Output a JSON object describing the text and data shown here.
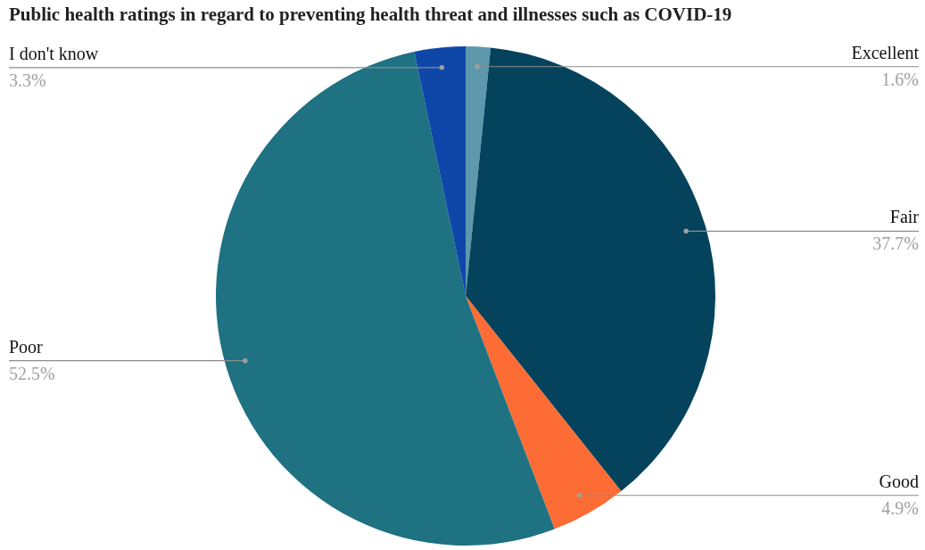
{
  "chart_data": {
    "type": "pie",
    "title": "Public health ratings in regard to preventing health threat and illnesses such as COVID-19",
    "categories": [
      "Excellent",
      "Fair",
      "Good",
      "Poor",
      "I don't know"
    ],
    "values": [
      1.6,
      37.7,
      4.9,
      52.5,
      3.3
    ],
    "colors": [
      "#5e98ad",
      "#05435c",
      "#fd6c35",
      "#1e7282",
      "#0f47a8"
    ],
    "value_labels": [
      "1.6%",
      "37.7%",
      "4.9%",
      "52.5%",
      "3.3%"
    ]
  }
}
